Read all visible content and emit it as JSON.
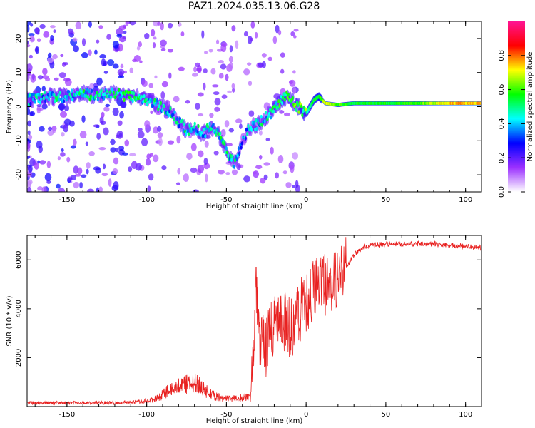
{
  "figure": {
    "title": "PAZ1.2024.035.13.06.G28"
  },
  "chart_data": [
    {
      "type": "heatmap",
      "title": "PAZ1.2024.035.13.06.G28",
      "xlabel": "Height of straight line (km)",
      "ylabel": "Frequency (Hz)",
      "xlim": [
        -175,
        110
      ],
      "ylim": [
        -25,
        25
      ],
      "xticks": [
        -150,
        -100,
        -50,
        0,
        50,
        100
      ],
      "yticks": [
        -20,
        -10,
        0,
        10,
        20
      ],
      "grid": false,
      "colorbar": {
        "label": "Normalized spectral amplitude",
        "range": [
          0,
          1
        ],
        "ticks": [
          "0.0",
          "0.2",
          "0.4",
          "0.6",
          "0.8"
        ],
        "colormap": [
          "#ffffff",
          "#9b30ff",
          "#0000ff",
          "#00ffff",
          "#00ff00",
          "#ffff00",
          "#ff0000",
          "#ff1493"
        ]
      },
      "ridge": {
        "height_km": [
          -175,
          -160,
          -150,
          -140,
          -130,
          -120,
          -110,
          -100,
          -90,
          -80,
          -75,
          -70,
          -65,
          -60,
          -55,
          -50,
          -47,
          -45,
          -40,
          -35,
          -30,
          -25,
          -20,
          -15,
          -12,
          -10,
          -5,
          0,
          5,
          8,
          12,
          20,
          30,
          50,
          70,
          90,
          110
        ],
        "frequency_hz": [
          2,
          3,
          3,
          4,
          3,
          4,
          3,
          2,
          0,
          -4,
          -7,
          -6,
          -8,
          -6,
          -8,
          -13,
          -15,
          -17,
          -10,
          -6,
          -5,
          -3,
          -1,
          2,
          3,
          2,
          0,
          -2,
          2,
          3,
          1,
          0.5,
          1,
          1,
          1,
          1,
          1
        ],
        "amplitude": [
          0.25,
          0.3,
          0.3,
          0.35,
          0.3,
          0.35,
          0.35,
          0.3,
          0.3,
          0.3,
          0.35,
          0.3,
          0.3,
          0.3,
          0.3,
          0.35,
          0.3,
          0.3,
          0.2,
          0.25,
          0.3,
          0.3,
          0.35,
          0.4,
          0.4,
          0.4,
          0.45,
          0.45,
          0.55,
          0.55,
          0.7,
          0.6,
          0.55,
          0.55,
          0.6,
          0.75,
          0.75
        ]
      }
    },
    {
      "type": "line",
      "xlabel": "Height of straight line (km)",
      "ylabel": "SNR (10 * v/v)",
      "xlim": [
        -175,
        110
      ],
      "ylim": [
        0,
        7000
      ],
      "xticks": [
        -150,
        -100,
        -50,
        0,
        50,
        100
      ],
      "yticks": [
        2000,
        4000,
        6000
      ],
      "grid": false,
      "series": [
        {
          "color": "#e8201f",
          "x": [
            -175,
            -160,
            -150,
            -140,
            -130,
            -120,
            -110,
            -100,
            -95,
            -90,
            -85,
            -80,
            -75,
            -70,
            -65,
            -60,
            -55,
            -50,
            -45,
            -40,
            -35,
            -33,
            -31,
            -30,
            -25,
            -20,
            -15,
            -10,
            -5,
            0,
            5,
            10,
            15,
            20,
            25,
            30,
            35,
            40,
            50,
            60,
            70,
            80,
            90,
            100,
            110
          ],
          "y": [
            150,
            150,
            150,
            160,
            150,
            160,
            170,
            220,
            300,
            500,
            700,
            800,
            900,
            1000,
            750,
            500,
            380,
            320,
            320,
            370,
            450,
            2500,
            5000,
            3000,
            2500,
            3400,
            3500,
            3200,
            3800,
            4300,
            4800,
            5000,
            4900,
            5200,
            5700,
            6200,
            6500,
            6600,
            6650,
            6650,
            6650,
            6650,
            6600,
            6550,
            6500
          ]
        }
      ]
    }
  ]
}
